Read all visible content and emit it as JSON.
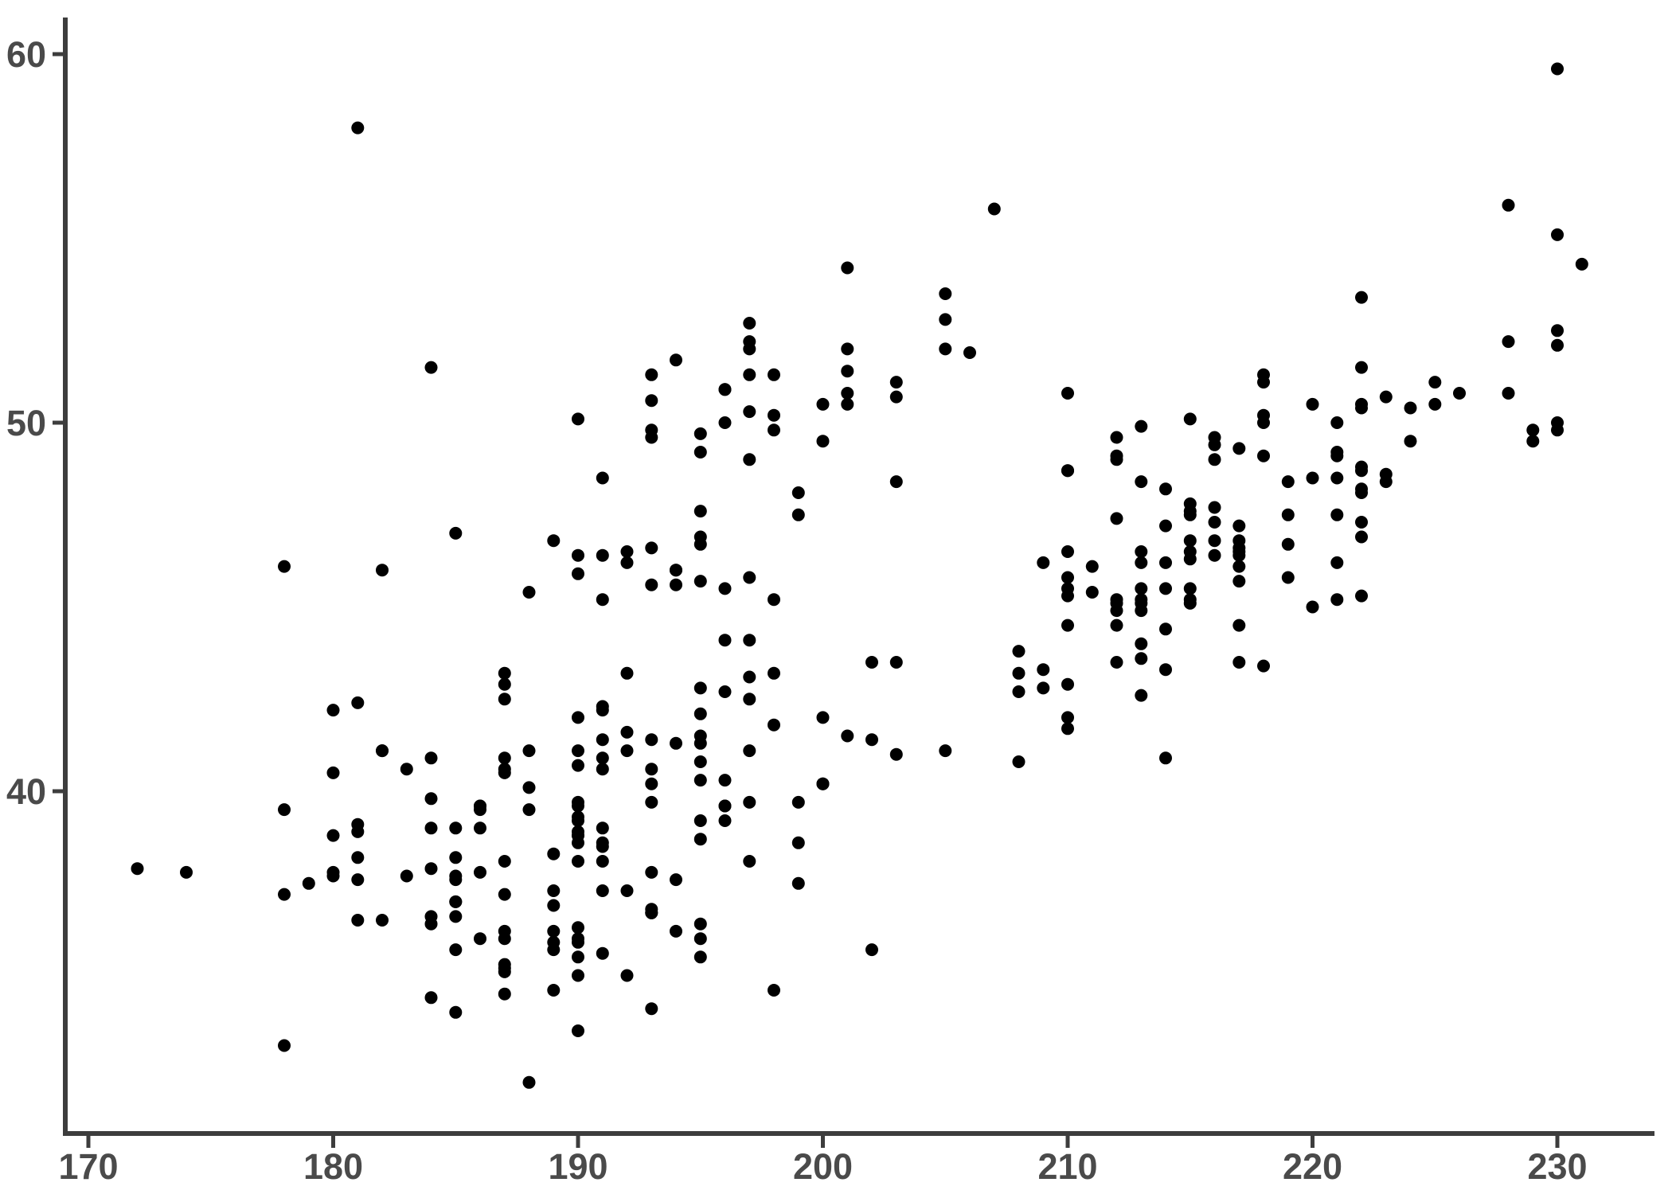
{
  "chart_data": {
    "type": "scatter",
    "title": "",
    "xlabel": "",
    "ylabel": "",
    "x_ticks": [
      170,
      180,
      190,
      200,
      210,
      220,
      230
    ],
    "y_ticks": [
      40,
      50,
      60
    ],
    "xlim": [
      169.1,
      234.0
    ],
    "ylim": [
      30.7,
      61.0
    ],
    "grid": false,
    "legend": "none",
    "point_color": "#000000",
    "axis_line_color": "#3d3d3d",
    "tick_label_color": "#4a4a4a",
    "background_color": "#ffffff",
    "points": [
      [
        181,
        39.1
      ],
      [
        186,
        39.5
      ],
      [
        195,
        40.3
      ],
      [
        193,
        36.7
      ],
      [
        190,
        39.3
      ],
      [
        181,
        38.9
      ],
      [
        195,
        39.2
      ],
      [
        193,
        34.1
      ],
      [
        190,
        42
      ],
      [
        186,
        37.8
      ],
      [
        180,
        37.8
      ],
      [
        182,
        41.1
      ],
      [
        191,
        38.6
      ],
      [
        198,
        34.6
      ],
      [
        185,
        36.6
      ],
      [
        195,
        38.7
      ],
      [
        197,
        42.5
      ],
      [
        184,
        34.4
      ],
      [
        194,
        46
      ],
      [
        174,
        37.8
      ],
      [
        180,
        37.7
      ],
      [
        189,
        35.9
      ],
      [
        185,
        38.2
      ],
      [
        180,
        38.8
      ],
      [
        187,
        35.3
      ],
      [
        183,
        40.6
      ],
      [
        187,
        40.5
      ],
      [
        172,
        37.9
      ],
      [
        180,
        40.5
      ],
      [
        178,
        39.5
      ],
      [
        178,
        37.2
      ],
      [
        188,
        39.5
      ],
      [
        184,
        40.9
      ],
      [
        195,
        36.4
      ],
      [
        196,
        39.2
      ],
      [
        190,
        38.8
      ],
      [
        180,
        42.2
      ],
      [
        181,
        37.6
      ],
      [
        184,
        39.8
      ],
      [
        182,
        36.5
      ],
      [
        195,
        40.8
      ],
      [
        186,
        36
      ],
      [
        196,
        44.1
      ],
      [
        185,
        37
      ],
      [
        190,
        39.6
      ],
      [
        182,
        41.1
      ],
      [
        179,
        37.5
      ],
      [
        190,
        36
      ],
      [
        191,
        42.3
      ],
      [
        186,
        39.6
      ],
      [
        188,
        40.1
      ],
      [
        190,
        35
      ],
      [
        200,
        42
      ],
      [
        187,
        34.5
      ],
      [
        191,
        41.4
      ],
      [
        186,
        39
      ],
      [
        193,
        40.6
      ],
      [
        181,
        36.5
      ],
      [
        194,
        37.6
      ],
      [
        185,
        35.7
      ],
      [
        195,
        41.3
      ],
      [
        185,
        37.6
      ],
      [
        192,
        41.1
      ],
      [
        184,
        36.4
      ],
      [
        192,
        41.6
      ],
      [
        195,
        35.5
      ],
      [
        188,
        41.1
      ],
      [
        190,
        35.9
      ],
      [
        198,
        41.8
      ],
      [
        190,
        33.5
      ],
      [
        190,
        39.7
      ],
      [
        196,
        39.6
      ],
      [
        197,
        45.8
      ],
      [
        190,
        35.5
      ],
      [
        195,
        42.8
      ],
      [
        191,
        40.9
      ],
      [
        184,
        39
      ],
      [
        187,
        37.2
      ],
      [
        189,
        36.2
      ],
      [
        195,
        42.1
      ],
      [
        189,
        34.6
      ],
      [
        187,
        42.9
      ],
      [
        193,
        36.7
      ],
      [
        187,
        35.1
      ],
      [
        191,
        37.3
      ],
      [
        194,
        41.3
      ],
      [
        190,
        36.3
      ],
      [
        189,
        36.9
      ],
      [
        189,
        38.3
      ],
      [
        190,
        38.9
      ],
      [
        202,
        35.7
      ],
      [
        205,
        41.1
      ],
      [
        185,
        34
      ],
      [
        186,
        39.6
      ],
      [
        187,
        36.2
      ],
      [
        208,
        40.8
      ],
      [
        190,
        38.1
      ],
      [
        196,
        40.3
      ],
      [
        178,
        33.1
      ],
      [
        192,
        43.2
      ],
      [
        192,
        35
      ],
      [
        203,
        41
      ],
      [
        183,
        37.7
      ],
      [
        193,
        37.8
      ],
      [
        184,
        37.9
      ],
      [
        199,
        39.7
      ],
      [
        190,
        38.6
      ],
      [
        181,
        38.2
      ],
      [
        197,
        38.1
      ],
      [
        198,
        43.2
      ],
      [
        191,
        38.1
      ],
      [
        193,
        45.6
      ],
      [
        197,
        39.7
      ],
      [
        191,
        42.2
      ],
      [
        196,
        39.6
      ],
      [
        196,
        42.7
      ],
      [
        199,
        38.6
      ],
      [
        189,
        37.3
      ],
      [
        189,
        35.7
      ],
      [
        197,
        41.1
      ],
      [
        194,
        36.2
      ],
      [
        185,
        37.7
      ],
      [
        200,
        40.2
      ],
      [
        193,
        41.4
      ],
      [
        187,
        35.2
      ],
      [
        191,
        40.6
      ],
      [
        190,
        38.8
      ],
      [
        195,
        41.5
      ],
      [
        191,
        39
      ],
      [
        197,
        44.1
      ],
      [
        191,
        38.5
      ],
      [
        197,
        43.1
      ],
      [
        193,
        36.8
      ],
      [
        199,
        37.5
      ],
      [
        187,
        38.1
      ],
      [
        190,
        41.1
      ],
      [
        191,
        35.6
      ],
      [
        200,
        40.2
      ],
      [
        185,
        37
      ],
      [
        193,
        39.7
      ],
      [
        193,
        40.2
      ],
      [
        187,
        40.6
      ],
      [
        188,
        32.1
      ],
      [
        190,
        40.7
      ],
      [
        192,
        37.3
      ],
      [
        185,
        39
      ],
      [
        190,
        39.2
      ],
      [
        184,
        36.6
      ],
      [
        195,
        36
      ],
      [
        187,
        36
      ],
      [
        201,
        41.5
      ],
      [
        192,
        46.5
      ],
      [
        196,
        50
      ],
      [
        193,
        51.3
      ],
      [
        188,
        45.4
      ],
      [
        197,
        52.7
      ],
      [
        198,
        45.2
      ],
      [
        178,
        46.1
      ],
      [
        197,
        51.3
      ],
      [
        182,
        46
      ],
      [
        198,
        51.3
      ],
      [
        193,
        46.6
      ],
      [
        194,
        51.7
      ],
      [
        185,
        47
      ],
      [
        201,
        52
      ],
      [
        190,
        45.9
      ],
      [
        201,
        50.5
      ],
      [
        197,
        50.3
      ],
      [
        181,
        58
      ],
      [
        190,
        46.4
      ],
      [
        195,
        49.2
      ],
      [
        181,
        42.4
      ],
      [
        191,
        48.5
      ],
      [
        187,
        43.2
      ],
      [
        193,
        50.6
      ],
      [
        195,
        46.7
      ],
      [
        197,
        52
      ],
      [
        200,
        50.5
      ],
      [
        200,
        49.5
      ],
      [
        191,
        46.4
      ],
      [
        205,
        52.8
      ],
      [
        187,
        40.9
      ],
      [
        201,
        54.2
      ],
      [
        187,
        42.5
      ],
      [
        203,
        51.1
      ],
      [
        195,
        49.7
      ],
      [
        195,
        47.6
      ],
      [
        199,
        47.5
      ],
      [
        197,
        52.2
      ],
      [
        195,
        46.9
      ],
      [
        205,
        53.5
      ],
      [
        197,
        49
      ],
      [
        192,
        46.2
      ],
      [
        196,
        50.9
      ],
      [
        196,
        45.5
      ],
      [
        196,
        50.9
      ],
      [
        201,
        50.8
      ],
      [
        190,
        50.1
      ],
      [
        203,
        48.4
      ],
      [
        184,
        51.5
      ],
      [
        193,
        49.8
      ],
      [
        199,
        48.1
      ],
      [
        201,
        51.4
      ],
      [
        195,
        45.7
      ],
      [
        203,
        50.7
      ],
      [
        191,
        45.2
      ],
      [
        194,
        45.6
      ],
      [
        206,
        51.9
      ],
      [
        189,
        46.8
      ],
      [
        202,
        41.4
      ],
      [
        207,
        55.8
      ],
      [
        202,
        43.5
      ],
      [
        193,
        49.6
      ],
      [
        210,
        50.8
      ],
      [
        198,
        50.2
      ],
      [
        198,
        49.8
      ],
      [
        212,
        49
      ],
      [
        194,
        46
      ],
      [
        205,
        52
      ],
      [
        211,
        46.1
      ],
      [
        230,
        50
      ],
      [
        210,
        48.7
      ],
      [
        218,
        50
      ],
      [
        215,
        47.6
      ],
      [
        210,
        46.5
      ],
      [
        211,
        45.4
      ],
      [
        219,
        46.7
      ],
      [
        209,
        43.3
      ],
      [
        215,
        46.8
      ],
      [
        214,
        40.9
      ],
      [
        216,
        49
      ],
      [
        214,
        45.5
      ],
      [
        213,
        48.4
      ],
      [
        210,
        45.8
      ],
      [
        217,
        49.3
      ],
      [
        210,
        42
      ],
      [
        221,
        49.2
      ],
      [
        209,
        46.2
      ],
      [
        222,
        48.7
      ],
      [
        218,
        50.2
      ],
      [
        215,
        45.1
      ],
      [
        213,
        46.5
      ],
      [
        215,
        46.3
      ],
      [
        210,
        42.9
      ],
      [
        217,
        46.1
      ],
      [
        210,
        44.5
      ],
      [
        215,
        47.8
      ],
      [
        222,
        48.2
      ],
      [
        216,
        47.3
      ],
      [
        209,
        42.8
      ],
      [
        213,
        45.1
      ],
      [
        230,
        59.6
      ],
      [
        212,
        49.1
      ],
      [
        219,
        48.4
      ],
      [
        213,
        42.6
      ],
      [
        214,
        44.4
      ],
      [
        213,
        44
      ],
      [
        210,
        48.7
      ],
      [
        208,
        42.7
      ],
      [
        212,
        49.6
      ],
      [
        210,
        45.3
      ],
      [
        216,
        49.6
      ],
      [
        222,
        50.5
      ],
      [
        213,
        43.6
      ],
      [
        215,
        45.5
      ],
      [
        220,
        50.5
      ],
      [
        212,
        44.9
      ],
      [
        221,
        45.2
      ],
      [
        217,
        46.6
      ],
      [
        221,
        48.5
      ],
      [
        212,
        45.1
      ],
      [
        215,
        50.1
      ],
      [
        217,
        46.5
      ],
      [
        220,
        45
      ],
      [
        208,
        43.8
      ],
      [
        210,
        45.5
      ],
      [
        208,
        43.2
      ],
      [
        224,
        50.4
      ],
      [
        222,
        45.3
      ],
      [
        221,
        46.2
      ],
      [
        217,
        45.7
      ],
      [
        231,
        54.3
      ],
      [
        219,
        45.8
      ],
      [
        230,
        49.8
      ],
      [
        214,
        46.2
      ],
      [
        229,
        49.5
      ],
      [
        212,
        43.5
      ],
      [
        223,
        50.7
      ],
      [
        216,
        47.7
      ],
      [
        217,
        46.4
      ],
      [
        214,
        48.2
      ],
      [
        215,
        46.5
      ],
      [
        216,
        46.4
      ],
      [
        223,
        48.6
      ],
      [
        221,
        47.5
      ],
      [
        218,
        51.1
      ],
      [
        215,
        45.2
      ],
      [
        213,
        45.2
      ],
      [
        221,
        49.1
      ],
      [
        230,
        52.5
      ],
      [
        212,
        47.4
      ],
      [
        221,
        50
      ],
      [
        213,
        44.9
      ],
      [
        228,
        50.8
      ],
      [
        218,
        43.4
      ],
      [
        218,
        51.3
      ],
      [
        219,
        47.5
      ],
      [
        230,
        52.1
      ],
      [
        215,
        47.5
      ],
      [
        228,
        52.2
      ],
      [
        213,
        45.5
      ],
      [
        224,
        49.5
      ],
      [
        212,
        44.5
      ],
      [
        226,
        50.8
      ],
      [
        216,
        49.4
      ],
      [
        222,
        46.9
      ],
      [
        223,
        48.4
      ],
      [
        225,
        51.1
      ],
      [
        220,
        48.5
      ],
      [
        228,
        55.9
      ],
      [
        217,
        47.2
      ],
      [
        218,
        49.1
      ],
      [
        222,
        47.3
      ],
      [
        217,
        46.8
      ],
      [
        210,
        41.7
      ],
      [
        222,
        53.4
      ],
      [
        214,
        43.3
      ],
      [
        222,
        48.1
      ],
      [
        225,
        50.5
      ],
      [
        229,
        49.8
      ],
      [
        217,
        43.5
      ],
      [
        222,
        51.5
      ],
      [
        213,
        46.2
      ],
      [
        230,
        55.1
      ],
      [
        217,
        44.5
      ],
      [
        222,
        48.8
      ],
      [
        214,
        47.2
      ],
      [
        216,
        46.8
      ],
      [
        222,
        50.4
      ],
      [
        212,
        45.2
      ],
      [
        213,
        49.9
      ],
      [
        203,
        43.5
      ]
    ]
  }
}
